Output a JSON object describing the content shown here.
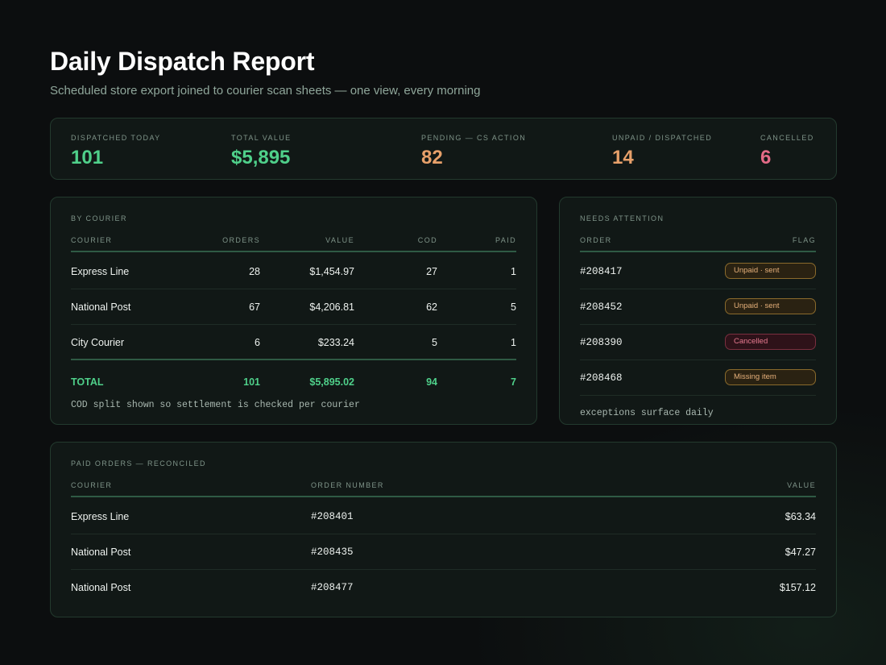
{
  "header": {
    "title": "Daily Dispatch Report",
    "subtitle": "Scheduled store export joined to courier scan sheets — one view, every morning"
  },
  "kpis": [
    {
      "label": "DISPATCHED TODAY",
      "value": "101",
      "color": "#4fd08a"
    },
    {
      "label": "TOTAL VALUE",
      "value": "$5,895",
      "color": "#4fd08a"
    },
    {
      "label": "PENDING — CS ACTION",
      "value": "82",
      "color": "#e7a06a"
    },
    {
      "label": "UNPAID / DISPATCHED",
      "value": "14",
      "color": "#e7a06a"
    },
    {
      "label": "CANCELLED",
      "value": "6",
      "color": "#e26a86"
    }
  ],
  "by_courier": {
    "title": "BY COURIER",
    "columns": [
      "COURIER",
      "ORDERS",
      "VALUE",
      "COD",
      "PAID"
    ],
    "rows": [
      {
        "courier": "Express Line",
        "orders": "28",
        "value": "$1,454.97",
        "cod": "27",
        "paid": "1"
      },
      {
        "courier": "National Post",
        "orders": "67",
        "value": "$4,206.81",
        "cod": "62",
        "paid": "5"
      },
      {
        "courier": "City Courier",
        "orders": "6",
        "value": "$233.24",
        "cod": "5",
        "paid": "1"
      }
    ],
    "total": {
      "courier": "TOTAL",
      "orders": "101",
      "value": "$5,895.02",
      "cod": "94",
      "paid": "7"
    },
    "note": "COD split shown so settlement is checked per courier"
  },
  "needs_attention": {
    "title": "NEEDS ATTENTION",
    "columns": [
      "ORDER",
      "FLAG"
    ],
    "rows": [
      {
        "order": "#208417",
        "flag": "Unpaid · sent",
        "severity": "warn"
      },
      {
        "order": "#208452",
        "flag": "Unpaid · sent",
        "severity": "warn"
      },
      {
        "order": "#208390",
        "flag": "Cancelled",
        "severity": "bad"
      },
      {
        "order": "#208468",
        "flag": "Missing item",
        "severity": "warn"
      }
    ],
    "note": "exceptions surface daily"
  },
  "paid_orders": {
    "title": "PAID ORDERS — RECONCILED",
    "columns": [
      "COURIER",
      "ORDER NUMBER",
      "VALUE"
    ],
    "rows": [
      {
        "courier": "Express Line",
        "order": "#208401",
        "value": "$63.34"
      },
      {
        "courier": "National Post",
        "order": "#208435",
        "value": "$47.27"
      },
      {
        "courier": "National Post",
        "order": "#208477",
        "value": "$157.12"
      }
    ]
  }
}
